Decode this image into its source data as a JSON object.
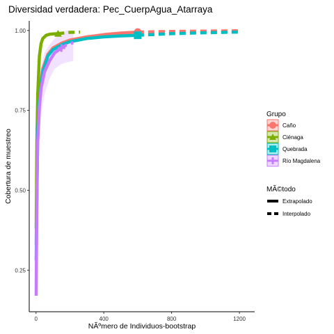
{
  "chart_data": {
    "type": "line",
    "title": "Diversidad verdadera: Pec_CuerpAgua_Atarraya",
    "xlabel": "NÃºmero de Individuos-bootstrap",
    "ylabel": "Cobertura de muestreo",
    "xlim": [
      -40,
      1290
    ],
    "ylim": [
      0.12,
      1.03
    ],
    "x_ticks": [
      0,
      400,
      800,
      1200
    ],
    "y_ticks": [
      0.25,
      0.5,
      0.75,
      1.0
    ],
    "x_tick_labels": [
      "0",
      "400",
      "800",
      "1200"
    ],
    "y_tick_labels": [
      "0.25",
      "0.50",
      "0.75",
      "1.00"
    ],
    "grid": false,
    "legend_position": "right",
    "legend": {
      "group_title": "Grupo",
      "method_title": "MÃ©todo",
      "methods": [
        "Extrapolado",
        "Interpolado"
      ]
    },
    "series": [
      {
        "name": "Caño",
        "color": "#F8766D",
        "marker": "circle",
        "observed": [
          600,
          0.995
        ],
        "interpolated": {
          "x": [
            1,
            10,
            20,
            40,
            70,
            100,
            150,
            200,
            300,
            400,
            500,
            600
          ],
          "y": [
            0.33,
            0.7,
            0.8,
            0.88,
            0.925,
            0.945,
            0.96,
            0.97,
            0.98,
            0.987,
            0.992,
            0.995
          ]
        },
        "extrapolated": {
          "x": [
            600,
            800,
            1000,
            1200
          ],
          "y": [
            0.995,
            0.997,
            0.998,
            0.999
          ]
        }
      },
      {
        "name": "Ciénaga",
        "color": "#7CAE00",
        "marker": "triangle",
        "observed": [
          130,
          0.99
        ],
        "interpolated": {
          "x": [
            1,
            5,
            10,
            20,
            30,
            40,
            60,
            80,
            100,
            130
          ],
          "y": [
            0.38,
            0.65,
            0.8,
            0.92,
            0.96,
            0.975,
            0.985,
            0.988,
            0.989,
            0.99
          ]
        },
        "extrapolated": {
          "x": [
            130,
            160,
            200,
            260
          ],
          "y": [
            0.99,
            0.992,
            0.994,
            0.995
          ]
        }
      },
      {
        "name": "Quebrada",
        "color": "#00BFC4",
        "marker": "square",
        "observed": [
          600,
          0.985
        ],
        "interpolated": {
          "x": [
            1,
            10,
            20,
            40,
            70,
            100,
            150,
            200,
            300,
            400,
            500,
            600
          ],
          "y": [
            0.28,
            0.68,
            0.78,
            0.87,
            0.92,
            0.94,
            0.955,
            0.965,
            0.975,
            0.98,
            0.983,
            0.985
          ]
        },
        "extrapolated": {
          "x": [
            600,
            800,
            1000,
            1200
          ],
          "y": [
            0.985,
            0.99,
            0.993,
            0.995
          ]
        }
      },
      {
        "name": "Río Magdalena",
        "color": "#C77CFF",
        "marker": "plus",
        "observed": [
          150,
          0.945
        ],
        "interpolated": {
          "x": [
            1,
            5,
            10,
            20,
            30,
            50,
            80,
            110,
            150
          ],
          "y": [
            0.17,
            0.5,
            0.65,
            0.76,
            0.82,
            0.87,
            0.905,
            0.93,
            0.945
          ]
        },
        "extrapolated": {
          "x": [
            150,
            180,
            220
          ],
          "y": [
            0.945,
            0.955,
            0.962
          ]
        },
        "ci_upper": [
          0.28,
          0.62,
          0.76,
          0.85,
          0.89,
          0.93,
          0.955,
          0.975,
          0.99,
          1.0,
          1.0
        ],
        "ci_lower": [
          0.12,
          0.38,
          0.55,
          0.67,
          0.74,
          0.8,
          0.85,
          0.88,
          0.895,
          0.9,
          0.905
        ],
        "ci_x": [
          1,
          5,
          10,
          20,
          30,
          50,
          80,
          110,
          150,
          180,
          220
        ]
      }
    ]
  }
}
